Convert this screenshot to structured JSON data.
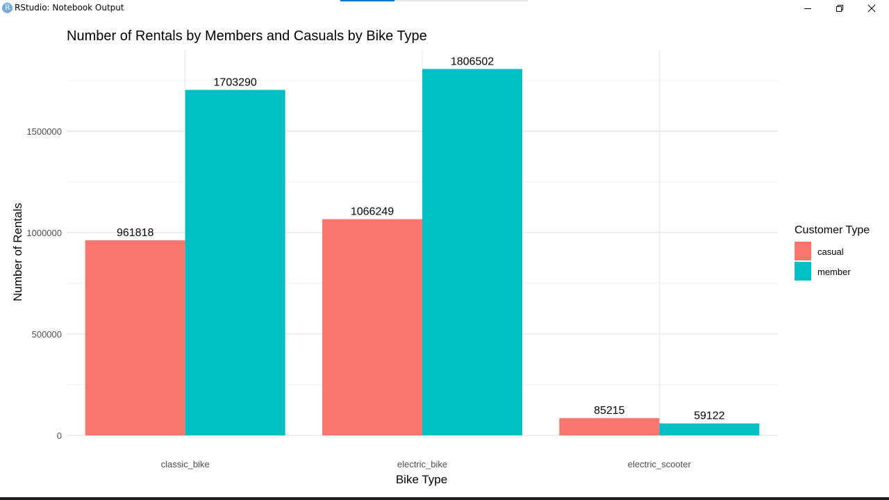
{
  "window": {
    "title": "RStudio: Notebook Output",
    "icon_letter": "R",
    "icon": "rstudio-logo-icon",
    "controls": [
      "minimize-icon",
      "restore-icon",
      "close-icon"
    ]
  },
  "chart_data": {
    "type": "bar",
    "title": "Number of Rentals by Members and Casuals by Bike Type",
    "xlabel": "Bike Type",
    "ylabel": "Number of Rentals",
    "categories": [
      "classic_bike",
      "electric_bike",
      "electric_scooter"
    ],
    "series": [
      {
        "name": "casual",
        "color": "#F8766D",
        "values": [
          961818,
          1066249,
          85215
        ]
      },
      {
        "name": "member",
        "color": "#00BFC4",
        "values": [
          1703290,
          1806502,
          59122
        ]
      }
    ],
    "ylim": [
      0,
      1900000
    ],
    "yticks": [
      0,
      500000,
      1000000,
      1500000
    ],
    "ytick_labels": [
      "0",
      "500000",
      "1000000",
      "1500000"
    ],
    "grid": true,
    "legend": {
      "title": "Customer Type",
      "position": "right",
      "entries": [
        "casual",
        "member"
      ]
    },
    "data_labels": true
  }
}
